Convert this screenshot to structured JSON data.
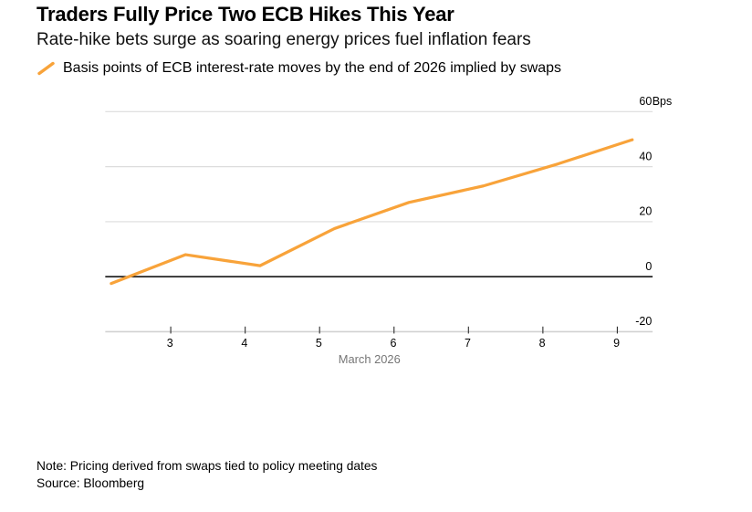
{
  "header": {
    "title": "Traders Fully Price Two ECB Hikes This Year",
    "subtitle": "Rate-hike bets surge as soaring energy prices fuel inflation fears"
  },
  "legend": {
    "label": "Basis points of ECB interest-rate moves by the end of 2026 implied by swaps"
  },
  "chart_data": {
    "type": "line",
    "title": "Traders Fully Price Two ECB Hikes This Year",
    "subtitle": "Rate-hike bets surge as soaring energy prices fuel inflation fears",
    "series": [
      {
        "name": "Basis points of ECB interest-rate moves by the end of 2026 implied by swaps",
        "color": "#F8A33A",
        "x": [
          2.2,
          3.2,
          4.2,
          5.2,
          6.2,
          7.2,
          8.2,
          9.2
        ],
        "y": [
          -2.5,
          8,
          4,
          17.5,
          27,
          33,
          41,
          49.8
        ]
      }
    ],
    "x_ticks": [
      3,
      4,
      5,
      6,
      7,
      8,
      9
    ],
    "x_axis_label": "March 2026",
    "y_ticks": [
      60,
      40,
      20,
      0,
      -20
    ],
    "y_unit_suffix": "Bps",
    "ylim": [
      -20,
      60
    ],
    "xlim": [
      2.13,
      9.47
    ],
    "grid": "horizontal",
    "zero_line": true,
    "legend_position": "top-left"
  },
  "footer": {
    "note": "Note: Pricing derived from swaps tied to policy meeting dates",
    "source": "Source: Bloomberg"
  },
  "colors": {
    "accent": "#F8A33A",
    "grid": "#DCDCDC",
    "axis": "#D2D2D2",
    "tick": "#333333",
    "text": "#000000",
    "muted": "#767676"
  }
}
